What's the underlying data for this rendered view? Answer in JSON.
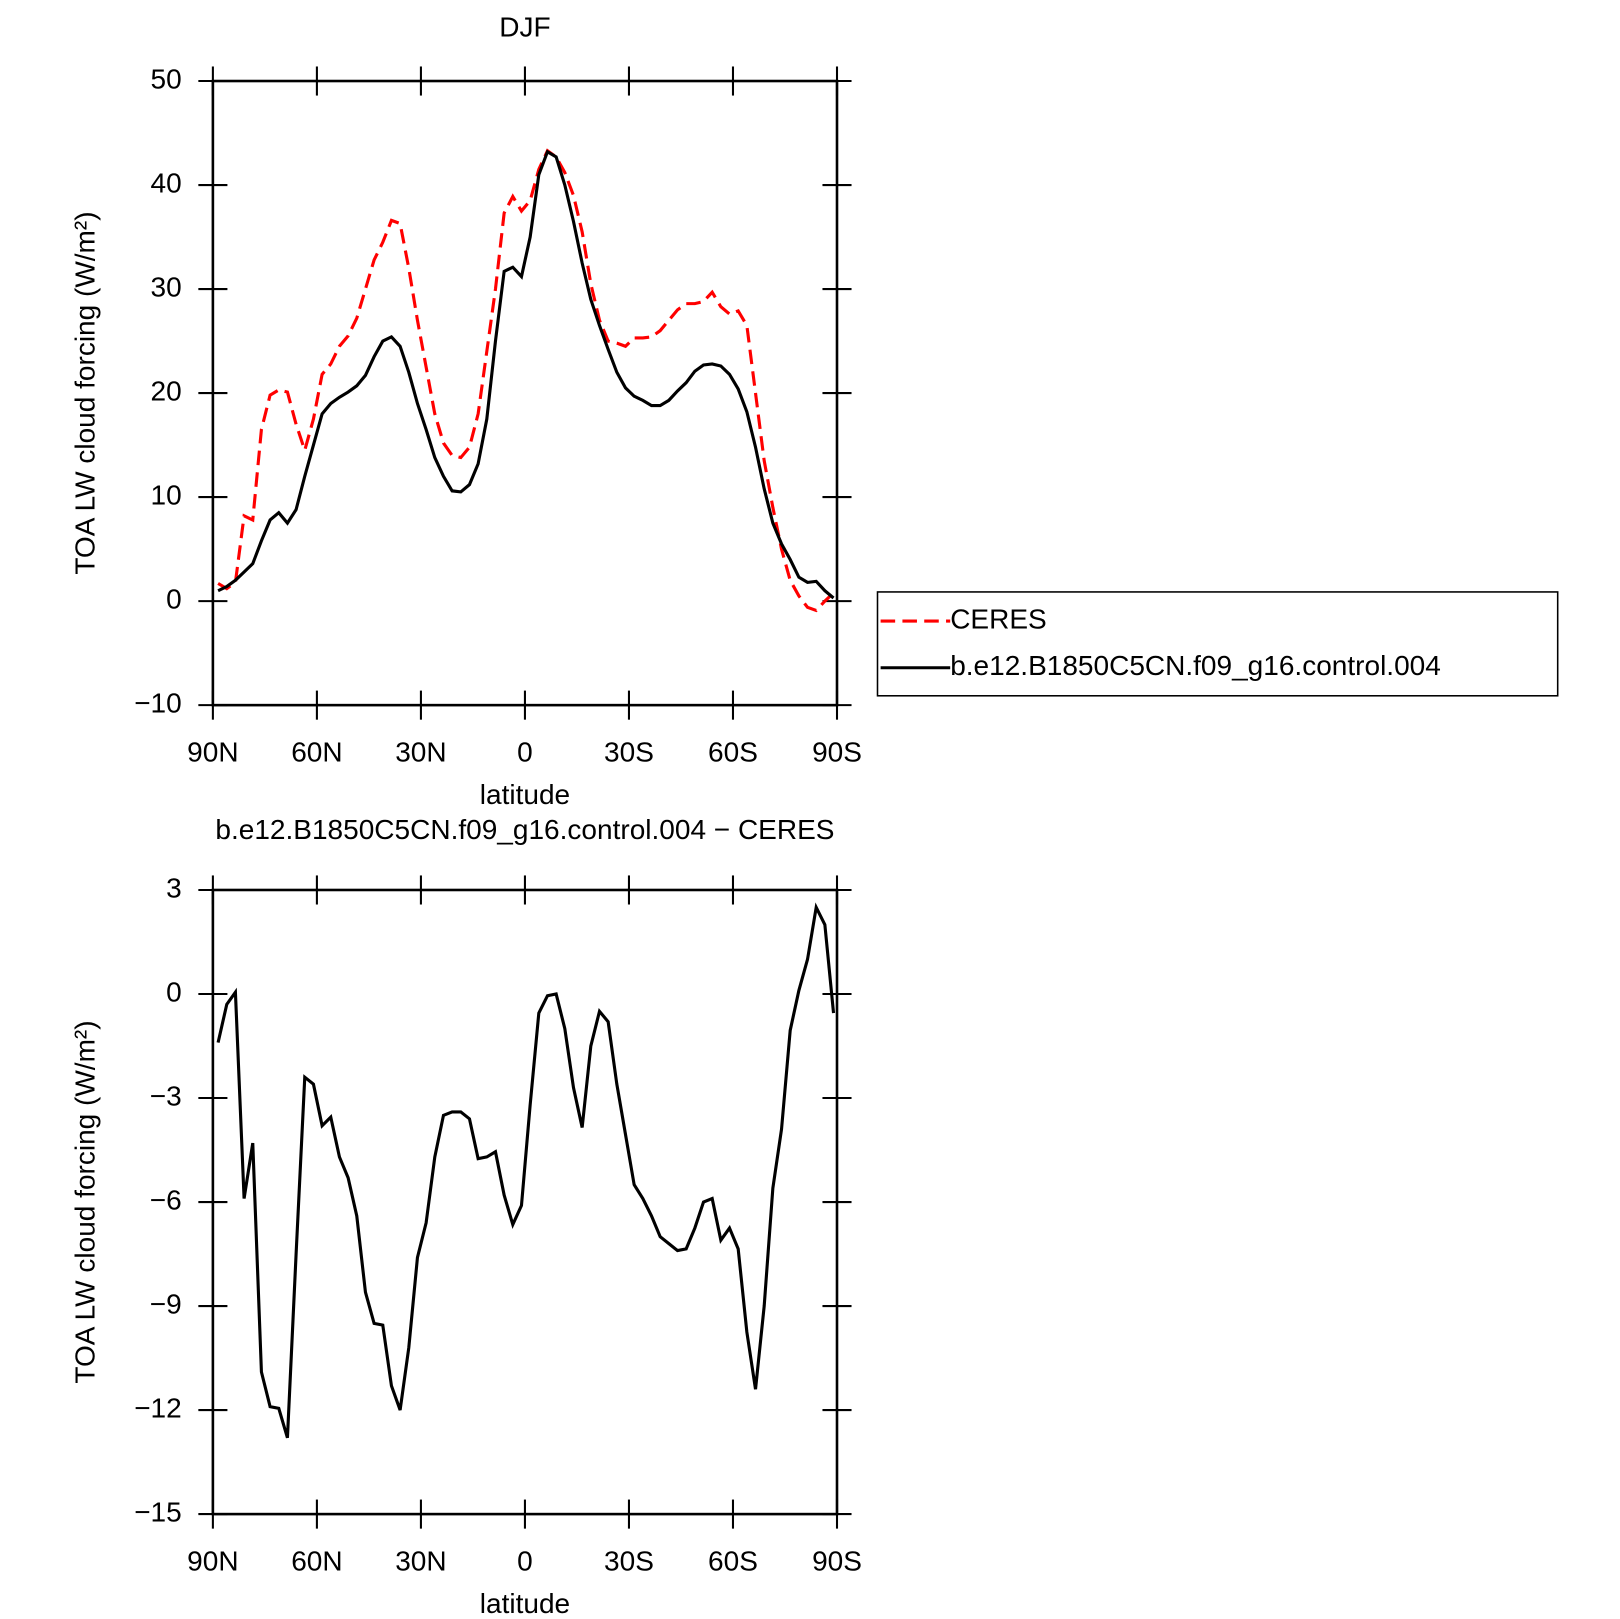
{
  "chart_data": [
    {
      "type": "line",
      "title": "DJF",
      "xlabel": "latitude",
      "ylabel": "TOA LW cloud forcing (W/m²)",
      "x": [
        88.5,
        86,
        83.5,
        81,
        78.5,
        76,
        73.5,
        71,
        68.5,
        66,
        63.5,
        61,
        58.5,
        56,
        53.5,
        51,
        48.5,
        46,
        43.5,
        41,
        38.5,
        36,
        33.5,
        31,
        28.5,
        26,
        23.5,
        21,
        18.5,
        16,
        13.5,
        11,
        8.5,
        6,
        3.5,
        1,
        -1.5,
        -4,
        -6.5,
        -9,
        -11.5,
        -14,
        -16.5,
        -19,
        -21.5,
        -24,
        -26.5,
        -29,
        -31.5,
        -34,
        -36.5,
        -39,
        -41.5,
        -44,
        -46.5,
        -49,
        -51.5,
        -54,
        -56.5,
        -59,
        -61.5,
        -64,
        -66.5,
        -69,
        -71.5,
        -74,
        -76.5,
        -79,
        -81.5,
        -84,
        -86.5,
        -89
      ],
      "series": [
        {
          "name": "CERES",
          "color": "#ff0000",
          "line_style": "dashed",
          "values": [
            1.7,
            1.2,
            1.8,
            8.2,
            7.8,
            16.5,
            19.8,
            20.3,
            20.1,
            17,
            14.5,
            17.5,
            21.8,
            22.8,
            24.5,
            25.5,
            27.2,
            30,
            32.8,
            34.5,
            36.6,
            36.3,
            32,
            27,
            22.5,
            18,
            15.2,
            14,
            13.8,
            14.8,
            18,
            24,
            30,
            37.3,
            38.9,
            37.5,
            38.5,
            41.5,
            43.3,
            42.7,
            41.2,
            39,
            35.5,
            30.5,
            27,
            25,
            24.8,
            24.5,
            25.3,
            25.3,
            25.4,
            26,
            27,
            28,
            28.6,
            28.6,
            28.8,
            29.7,
            28.3,
            27.6,
            27.9,
            26.5,
            20,
            13.5,
            9,
            5,
            2,
            0.5,
            -0.6,
            -0.9,
            0,
            0.8
          ]
        },
        {
          "name": "b.e12.B1850C5CN.f09_g16.control.004",
          "color": "#000000",
          "line_style": "solid",
          "values": [
            1.0,
            1.4,
            2.0,
            2.8,
            3.6,
            5.8,
            7.8,
            8.5,
            7.5,
            8.8,
            12,
            15,
            18,
            19,
            19.6,
            20.1,
            20.7,
            21.7,
            23.5,
            25,
            25.4,
            24.5,
            22,
            19,
            16.5,
            13.8,
            12,
            10.6,
            10.5,
            11.2,
            13.2,
            17.5,
            25,
            31.7,
            32.1,
            31.2,
            35,
            41,
            43.2,
            42.7,
            40,
            36.5,
            32.5,
            29,
            26.5,
            24.2,
            22,
            20.5,
            19.7,
            19.3,
            18.8,
            18.8,
            19.3,
            20.2,
            21,
            22.1,
            22.7,
            22.8,
            22.6,
            21.8,
            20.4,
            18.2,
            14.8,
            10.8,
            7.5,
            5.5,
            4,
            2.3,
            1.8,
            1.9,
            1.0,
            0.3
          ]
        }
      ],
      "xlim": [
        90,
        -90
      ],
      "xticks": [
        {
          "value": 90,
          "label": "90N"
        },
        {
          "value": 60,
          "label": "60N"
        },
        {
          "value": 30,
          "label": "30N"
        },
        0,
        {
          "value": -30,
          "label": "30S"
        },
        {
          "value": -60,
          "label": "60S"
        },
        {
          "value": -90,
          "label": "90S"
        }
      ],
      "ylim": [
        -10,
        50
      ],
      "yticks": [
        {
          "value": -10,
          "label": "−10"
        },
        0,
        10,
        20,
        30,
        40,
        50
      ],
      "legend": "right"
    },
    {
      "type": "line",
      "title": "b.e12.B1850C5CN.f09_g16.control.004 − CERES",
      "xlabel": "latitude",
      "ylabel": "TOA LW cloud forcing (W/m²)",
      "x": [
        88.5,
        86,
        83.5,
        81,
        78.5,
        76,
        73.5,
        71,
        68.5,
        66,
        63.5,
        61,
        58.5,
        56,
        53.5,
        51,
        48.5,
        46,
        43.5,
        41,
        38.5,
        36,
        33.5,
        31,
        28.5,
        26,
        23.5,
        21,
        18.5,
        16,
        13.5,
        11,
        8.5,
        6,
        3.5,
        1,
        -1.5,
        -4,
        -6.5,
        -9,
        -11.5,
        -14,
        -16.5,
        -19,
        -21.5,
        -24,
        -26.5,
        -29,
        -31.5,
        -34,
        -36.5,
        -39,
        -41.5,
        -44,
        -46.5,
        -49,
        -51.5,
        -54,
        -56.5,
        -59,
        -61.5,
        -64,
        -66.5,
        -69,
        -71.5,
        -74,
        -76.5,
        -79,
        -81.5,
        -84,
        -86.5,
        -89
      ],
      "series": [
        {
          "color": "#000000",
          "line_style": "solid",
          "values": [
            -1.4,
            -0.3,
            0.05,
            -5.9,
            -4.3,
            -10.9,
            -11.9,
            -11.95,
            -12.8,
            -7.5,
            -2.4,
            -2.6,
            -3.8,
            -3.55,
            -4.7,
            -5.3,
            -6.4,
            -8.6,
            -9.5,
            -9.55,
            -11.3,
            -12,
            -10.2,
            -7.6,
            -6.6,
            -4.7,
            -3.5,
            -3.4,
            -3.4,
            -3.6,
            -4.75,
            -4.7,
            -4.55,
            -5.8,
            -6.65,
            -6.1,
            -3.2,
            -0.55,
            -0.05,
            0,
            -1.0,
            -2.7,
            -3.85,
            -1.5,
            -0.5,
            -0.8,
            -2.6,
            -4.05,
            -5.5,
            -5.9,
            -6.4,
            -7.0,
            -7.2,
            -7.4,
            -7.35,
            -6.75,
            -6.0,
            -5.9,
            -7.1,
            -6.75,
            -7.35,
            -9.75,
            -11.4,
            -9.0,
            -5.6,
            -3.9,
            -1.05,
            0.1,
            1.0,
            2.5,
            2.0,
            -0.55
          ]
        }
      ],
      "xlim": [
        90,
        -90
      ],
      "xticks": [
        {
          "value": 90,
          "label": "90N"
        },
        {
          "value": 60,
          "label": "60N"
        },
        {
          "value": 30,
          "label": "30N"
        },
        0,
        {
          "value": -30,
          "label": "30S"
        },
        {
          "value": -60,
          "label": "60S"
        },
        {
          "value": -90,
          "label": "90S"
        }
      ],
      "ylim": [
        -15,
        3
      ],
      "yticks": [
        {
          "value": -15,
          "label": "−15"
        },
        {
          "value": -12,
          "label": "−12"
        },
        {
          "value": -9,
          "label": "−9"
        },
        {
          "value": -6,
          "label": "−6"
        },
        {
          "value": -3,
          "label": "−3"
        },
        0,
        3
      ]
    }
  ]
}
